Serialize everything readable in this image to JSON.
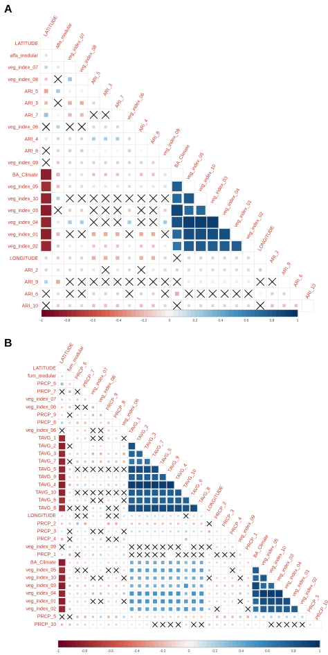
{
  "panels": [
    {
      "letter": "A",
      "variables": [
        "LATITUDE",
        "alfa_modular",
        "veg_index_07",
        "veg_index_08",
        "ARI_5",
        "ARI_3",
        "ARI_7",
        "veg_index_06",
        "ARI_4",
        "ARI_8",
        "veg_index_09",
        "BA_Climate",
        "veg_index_05",
        "veg_index_10",
        "veg_index_03",
        "veg_index_04",
        "veg_index_01",
        "veg_index_02",
        "LONGITUDE",
        "ARI_2",
        "ARI_9",
        "ARI_6",
        "ARI_10"
      ],
      "colorbar_ticks": [
        "-1",
        "-0.8",
        "-0.6",
        "-0.4",
        "-0.2",
        "0",
        "0.2",
        "0.4",
        "0.6",
        "0.8",
        "1"
      ]
    },
    {
      "letter": "B",
      "variables": [
        "LATITUDE",
        "fum_modular",
        "PRCP_6",
        "PRCP_7",
        "veg_index_07",
        "veg_index_08",
        "PRCP_9",
        "PRCP_8",
        "veg_index_06",
        "TAVG_1",
        "TAVG_2",
        "TAVG_3",
        "TAVG_7",
        "TAVG_5",
        "TAVG_9",
        "TAVG_4",
        "TAVG_10",
        "TAVG_6",
        "TAVG_8",
        "LONGITUDE",
        "PRCP_2",
        "PRCP_3",
        "PRCP_4",
        "veg_index_09",
        "PRCP_1",
        "BA_Climate",
        "veg_index_05",
        "veg_index_10",
        "veg_index_03",
        "veg_index_04",
        "veg_index_01",
        "veg_index_02",
        "PRCP_5",
        "PRCP_10"
      ],
      "colorbar_ticks": [
        "-1",
        "-0.8",
        "-0.6",
        "-0.4",
        "-0.2",
        "0",
        "0.2",
        "0.4",
        "0.6",
        "0.8",
        "1"
      ]
    }
  ],
  "colors": {
    "negative": "#67001f",
    "neutral": "#f7f7f7",
    "positive": "#053061",
    "label": "#c0392b"
  },
  "chart_data": [
    {
      "type": "heatmap",
      "title": "A",
      "variables": [
        "LATITUDE",
        "alfa_modular",
        "veg_index_07",
        "veg_index_08",
        "ARI_5",
        "ARI_3",
        "ARI_7",
        "veg_index_06",
        "ARI_4",
        "ARI_8",
        "veg_index_09",
        "BA_Climate",
        "veg_index_05",
        "veg_index_10",
        "veg_index_03",
        "veg_index_04",
        "veg_index_01",
        "veg_index_02",
        "LONGITUDE",
        "ARI_2",
        "ARI_9",
        "ARI_6",
        "ARI_10"
      ],
      "matrix_shape": "lower-triangle correlation",
      "color_range": [
        -1,
        1
      ],
      "insignificant_marker": "X",
      "strong_blocks": [
        {
          "rows": [
            "veg_index_05",
            "veg_index_10",
            "veg_index_03",
            "veg_index_04",
            "veg_index_01",
            "veg_index_02"
          ],
          "approx_r": 0.8
        },
        {
          "rows": [
            "BA_Climate",
            "veg_index_05",
            "veg_index_10",
            "veg_index_03",
            "veg_index_04",
            "veg_index_01",
            "veg_index_02"
          ],
          "column": "LATITUDE",
          "approx_r": -0.9
        }
      ]
    },
    {
      "type": "heatmap",
      "title": "B",
      "variables": [
        "LATITUDE",
        "fum_modular",
        "PRCP_6",
        "PRCP_7",
        "veg_index_07",
        "veg_index_08",
        "PRCP_9",
        "PRCP_8",
        "veg_index_06",
        "TAVG_1",
        "TAVG_2",
        "TAVG_3",
        "TAVG_7",
        "TAVG_5",
        "TAVG_9",
        "TAVG_4",
        "TAVG_10",
        "TAVG_6",
        "TAVG_8",
        "LONGITUDE",
        "PRCP_2",
        "PRCP_3",
        "PRCP_4",
        "veg_index_09",
        "PRCP_1",
        "BA_Climate",
        "veg_index_05",
        "veg_index_10",
        "veg_index_03",
        "veg_index_04",
        "veg_index_01",
        "veg_index_02",
        "PRCP_5",
        "PRCP_10"
      ],
      "matrix_shape": "lower-triangle correlation",
      "color_range": [
        -1,
        1
      ],
      "insignificant_marker": "X",
      "strong_blocks": [
        {
          "rows": [
            "TAVG_1",
            "TAVG_2",
            "TAVG_3",
            "TAVG_7",
            "TAVG_5",
            "TAVG_9",
            "TAVG_4",
            "TAVG_10",
            "TAVG_6",
            "TAVG_8"
          ],
          "approx_r": 0.7
        },
        {
          "rows": [
            "BA_Climate",
            "veg_index_05",
            "veg_index_10",
            "veg_index_03",
            "veg_index_04",
            "veg_index_01",
            "veg_index_02"
          ],
          "approx_r": 0.8
        },
        {
          "rows": [
            "TAVG_1",
            "TAVG_2",
            "TAVG_3",
            "TAVG_7",
            "TAVG_5",
            "TAVG_9",
            "TAVG_4",
            "TAVG_10",
            "TAVG_6",
            "TAVG_8",
            "veg_index_05",
            "veg_index_10",
            "veg_index_03",
            "veg_index_04",
            "veg_index_01",
            "veg_index_02"
          ],
          "column": "LATITUDE",
          "approx_r": -0.85
        }
      ]
    }
  ]
}
